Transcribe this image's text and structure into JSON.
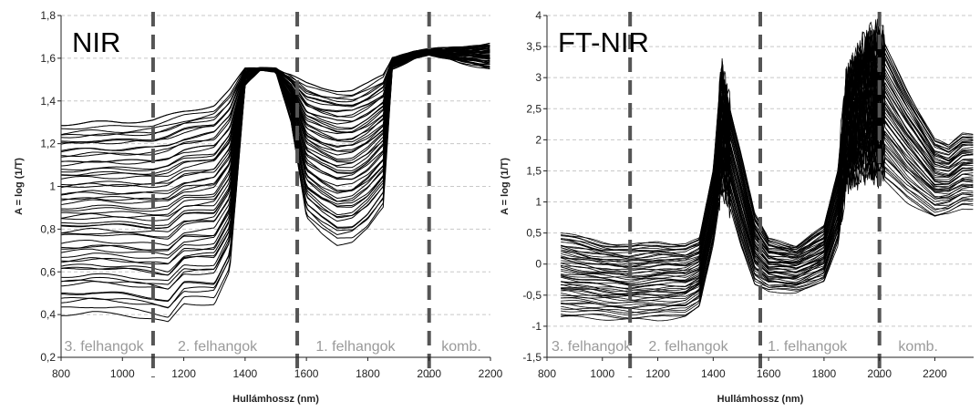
{
  "chart_data": [
    {
      "type": "line",
      "title": "NIR",
      "xlabel": "Hullámhossz (nm)",
      "ylabel": "A = log (1/T)",
      "xlim": [
        800,
        2200
      ],
      "ylim": [
        0.2,
        1.8
      ],
      "xticks": [
        800,
        1000,
        1200,
        1400,
        1600,
        1800,
        2000,
        2200
      ],
      "xtick_labels": [
        "800",
        "1000",
        "1200",
        "1400",
        "1600",
        "1800",
        "2000",
        "2200"
      ],
      "yticks": [
        0.2,
        0.4,
        0.6,
        0.8,
        1.0,
        1.2,
        1.4,
        1.6,
        1.8
      ],
      "ytick_labels": [
        "0,2",
        "0,4",
        "0,6",
        "0,8",
        "1",
        "1,2",
        "1,4",
        "1,6",
        "1,8"
      ],
      "grid": "horizontal dashed",
      "dividers": [
        1100,
        1570,
        2000
      ],
      "region_labels": [
        {
          "text": "3. felhangok",
          "x": 940
        },
        {
          "text": "2. felhangok",
          "x": 1310
        },
        {
          "text": "1. felhangok",
          "x": 1760
        },
        {
          "text": "komb.",
          "x": 2105
        }
      ],
      "series_count": 60,
      "envelope_x": [
        800,
        900,
        1000,
        1100,
        1150,
        1200,
        1300,
        1350,
        1400,
        1450,
        1500,
        1550,
        1600,
        1650,
        1700,
        1750,
        1800,
        1850,
        1880,
        1950,
        2000,
        2100,
        2200
      ],
      "envelope_upper": [
        1.29,
        1.3,
        1.3,
        1.31,
        1.33,
        1.35,
        1.38,
        1.45,
        1.55,
        1.55,
        1.55,
        1.52,
        1.48,
        1.46,
        1.45,
        1.45,
        1.48,
        1.52,
        1.6,
        1.63,
        1.64,
        1.65,
        1.67
      ],
      "envelope_lower": [
        0.4,
        0.41,
        0.4,
        0.38,
        0.36,
        0.45,
        0.45,
        0.6,
        1.47,
        1.55,
        1.54,
        1.3,
        0.85,
        0.78,
        0.73,
        0.74,
        0.8,
        0.9,
        1.55,
        1.6,
        1.62,
        1.58,
        1.55
      ]
    },
    {
      "type": "line",
      "title": "FT-NIR",
      "xlabel": "Hullámhossz (nm)",
      "ylabel": "A = log (1/T)",
      "xlim": [
        800,
        2340
      ],
      "ylim": [
        -1.5,
        4
      ],
      "xticks": [
        800,
        1000,
        1200,
        1400,
        1600,
        1800,
        2000,
        2200
      ],
      "xtick_labels": [
        "800",
        "1000",
        "1200",
        "1400",
        "1600",
        "1800",
        "2000",
        "2200"
      ],
      "yticks": [
        -1.5,
        -1,
        -0.5,
        0,
        0.5,
        1,
        1.5,
        2,
        2.5,
        3,
        3.5,
        4
      ],
      "ytick_labels": [
        "-1,5",
        "-1",
        "-0,5",
        "0",
        "0,5",
        "1",
        "1,5",
        "2",
        "2,5",
        "3",
        "3,5",
        "4"
      ],
      "grid": "horizontal dashed",
      "dividers": [
        1100,
        1570,
        2000
      ],
      "region_labels": [
        {
          "text": "3. felhangok",
          "x": 960
        },
        {
          "text": "2. felhangok",
          "x": 1310
        },
        {
          "text": "1. felhangok",
          "x": 1740
        },
        {
          "text": "komb.",
          "x": 2140
        }
      ],
      "series_count": 60,
      "envelope_x": [
        850,
        1000,
        1100,
        1200,
        1300,
        1350,
        1400,
        1430,
        1450,
        1500,
        1550,
        1600,
        1700,
        1800,
        1850,
        1880,
        1950,
        2000,
        2100,
        2200,
        2250,
        2300,
        2340
      ],
      "envelope_upper": [
        0.5,
        0.35,
        0.3,
        0.35,
        0.32,
        0.4,
        1.5,
        3.2,
        2.7,
        1.8,
        0.8,
        0.4,
        0.3,
        0.6,
        1.5,
        3.0,
        3.6,
        3.7,
        2.8,
        2.0,
        1.9,
        2.1,
        2.1
      ],
      "envelope_lower": [
        -0.85,
        -0.88,
        -0.9,
        -0.9,
        -0.85,
        -0.7,
        0.3,
        1.2,
        1.1,
        0.3,
        -0.35,
        -0.45,
        -0.45,
        -0.3,
        0.3,
        1.3,
        1.5,
        1.4,
        1.0,
        0.75,
        0.8,
        0.9,
        0.9
      ]
    }
  ]
}
